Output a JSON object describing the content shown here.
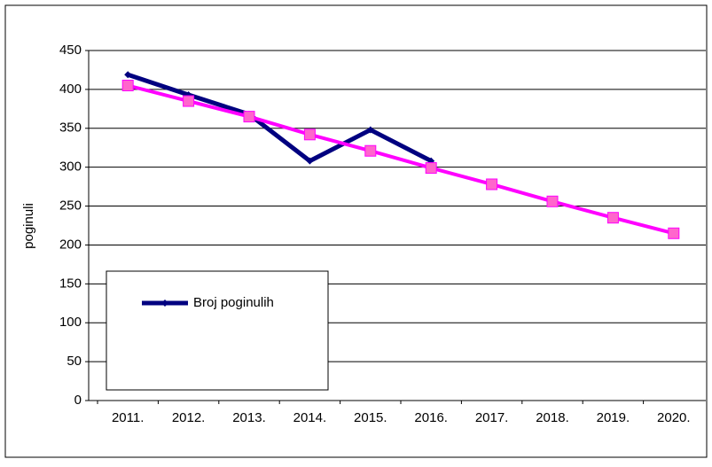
{
  "chart_data": {
    "type": "line",
    "y_label": "poginuli",
    "categories": [
      "2011.",
      "2012.",
      "2013.",
      "2014.",
      "2015.",
      "2016.",
      "2017.",
      "2018.",
      "2019.",
      "2020."
    ],
    "series": [
      {
        "name": "Broj poginulih",
        "color": "#000080",
        "values": [
          419,
          393,
          368,
          308,
          348,
          308,
          null,
          null,
          null,
          null
        ]
      },
      {
        "color": "#ff00ff",
        "marker_color": "#ff66cc",
        "values": [
          405,
          385,
          365,
          342,
          321,
          299,
          278,
          256,
          235,
          215
        ]
      }
    ],
    "ylim": [
      0,
      450
    ],
    "yticks": [
      0,
      50,
      100,
      150,
      200,
      250,
      300,
      350,
      400,
      450
    ],
    "grid": true,
    "legend": "lower left"
  }
}
